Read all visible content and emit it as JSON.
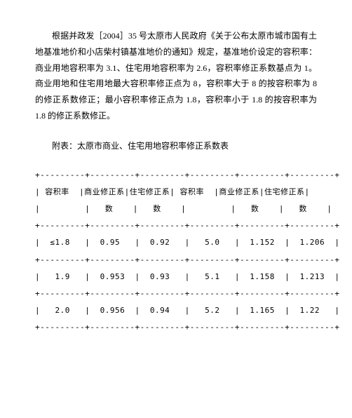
{
  "paragraph": "根据并政发［2004］35 号太原市人民政府《关于公布太原市城市国有土地基准地价和小店柴村镇基准地价的通知》规定，基准地价设定的容积率：商业用地容积率为 3.1、住宅用地容积率为 2.6，容积率修正系数基点为 1。商业用地和住宅用地最大容积率修正点为 8，容积率大于 8 的按容积率为 8 的修正系数修正；最小容积率修正点为 1.8，容积率小于 1.8 的按容积率为 1.8 的修正系数修正。",
  "subtitle": "附表：太原市商业、住宅用地容积率修正系数表",
  "dashline": "+---------+---------+---------+---------+---------+---------+",
  "header_row": "| 容积率  |商业修正系|住宅修正系| 容积率  |商业修正系|住宅修正系|",
  "sub_row": "|         |   数    |   数    |         |   数    |   数    |",
  "row1": "|  ≤1.8   |  0.95   |  0.92   |   5.0   |  1.152  |  1.206  |",
  "row2": "|   1.9   |  0.953  |  0.93   |   5.1   |  1.158  |  1.213  |",
  "row3": "|   2.0   |  0.956  |  0.94   |   5.2   |  1.165  |  1.22   |"
}
